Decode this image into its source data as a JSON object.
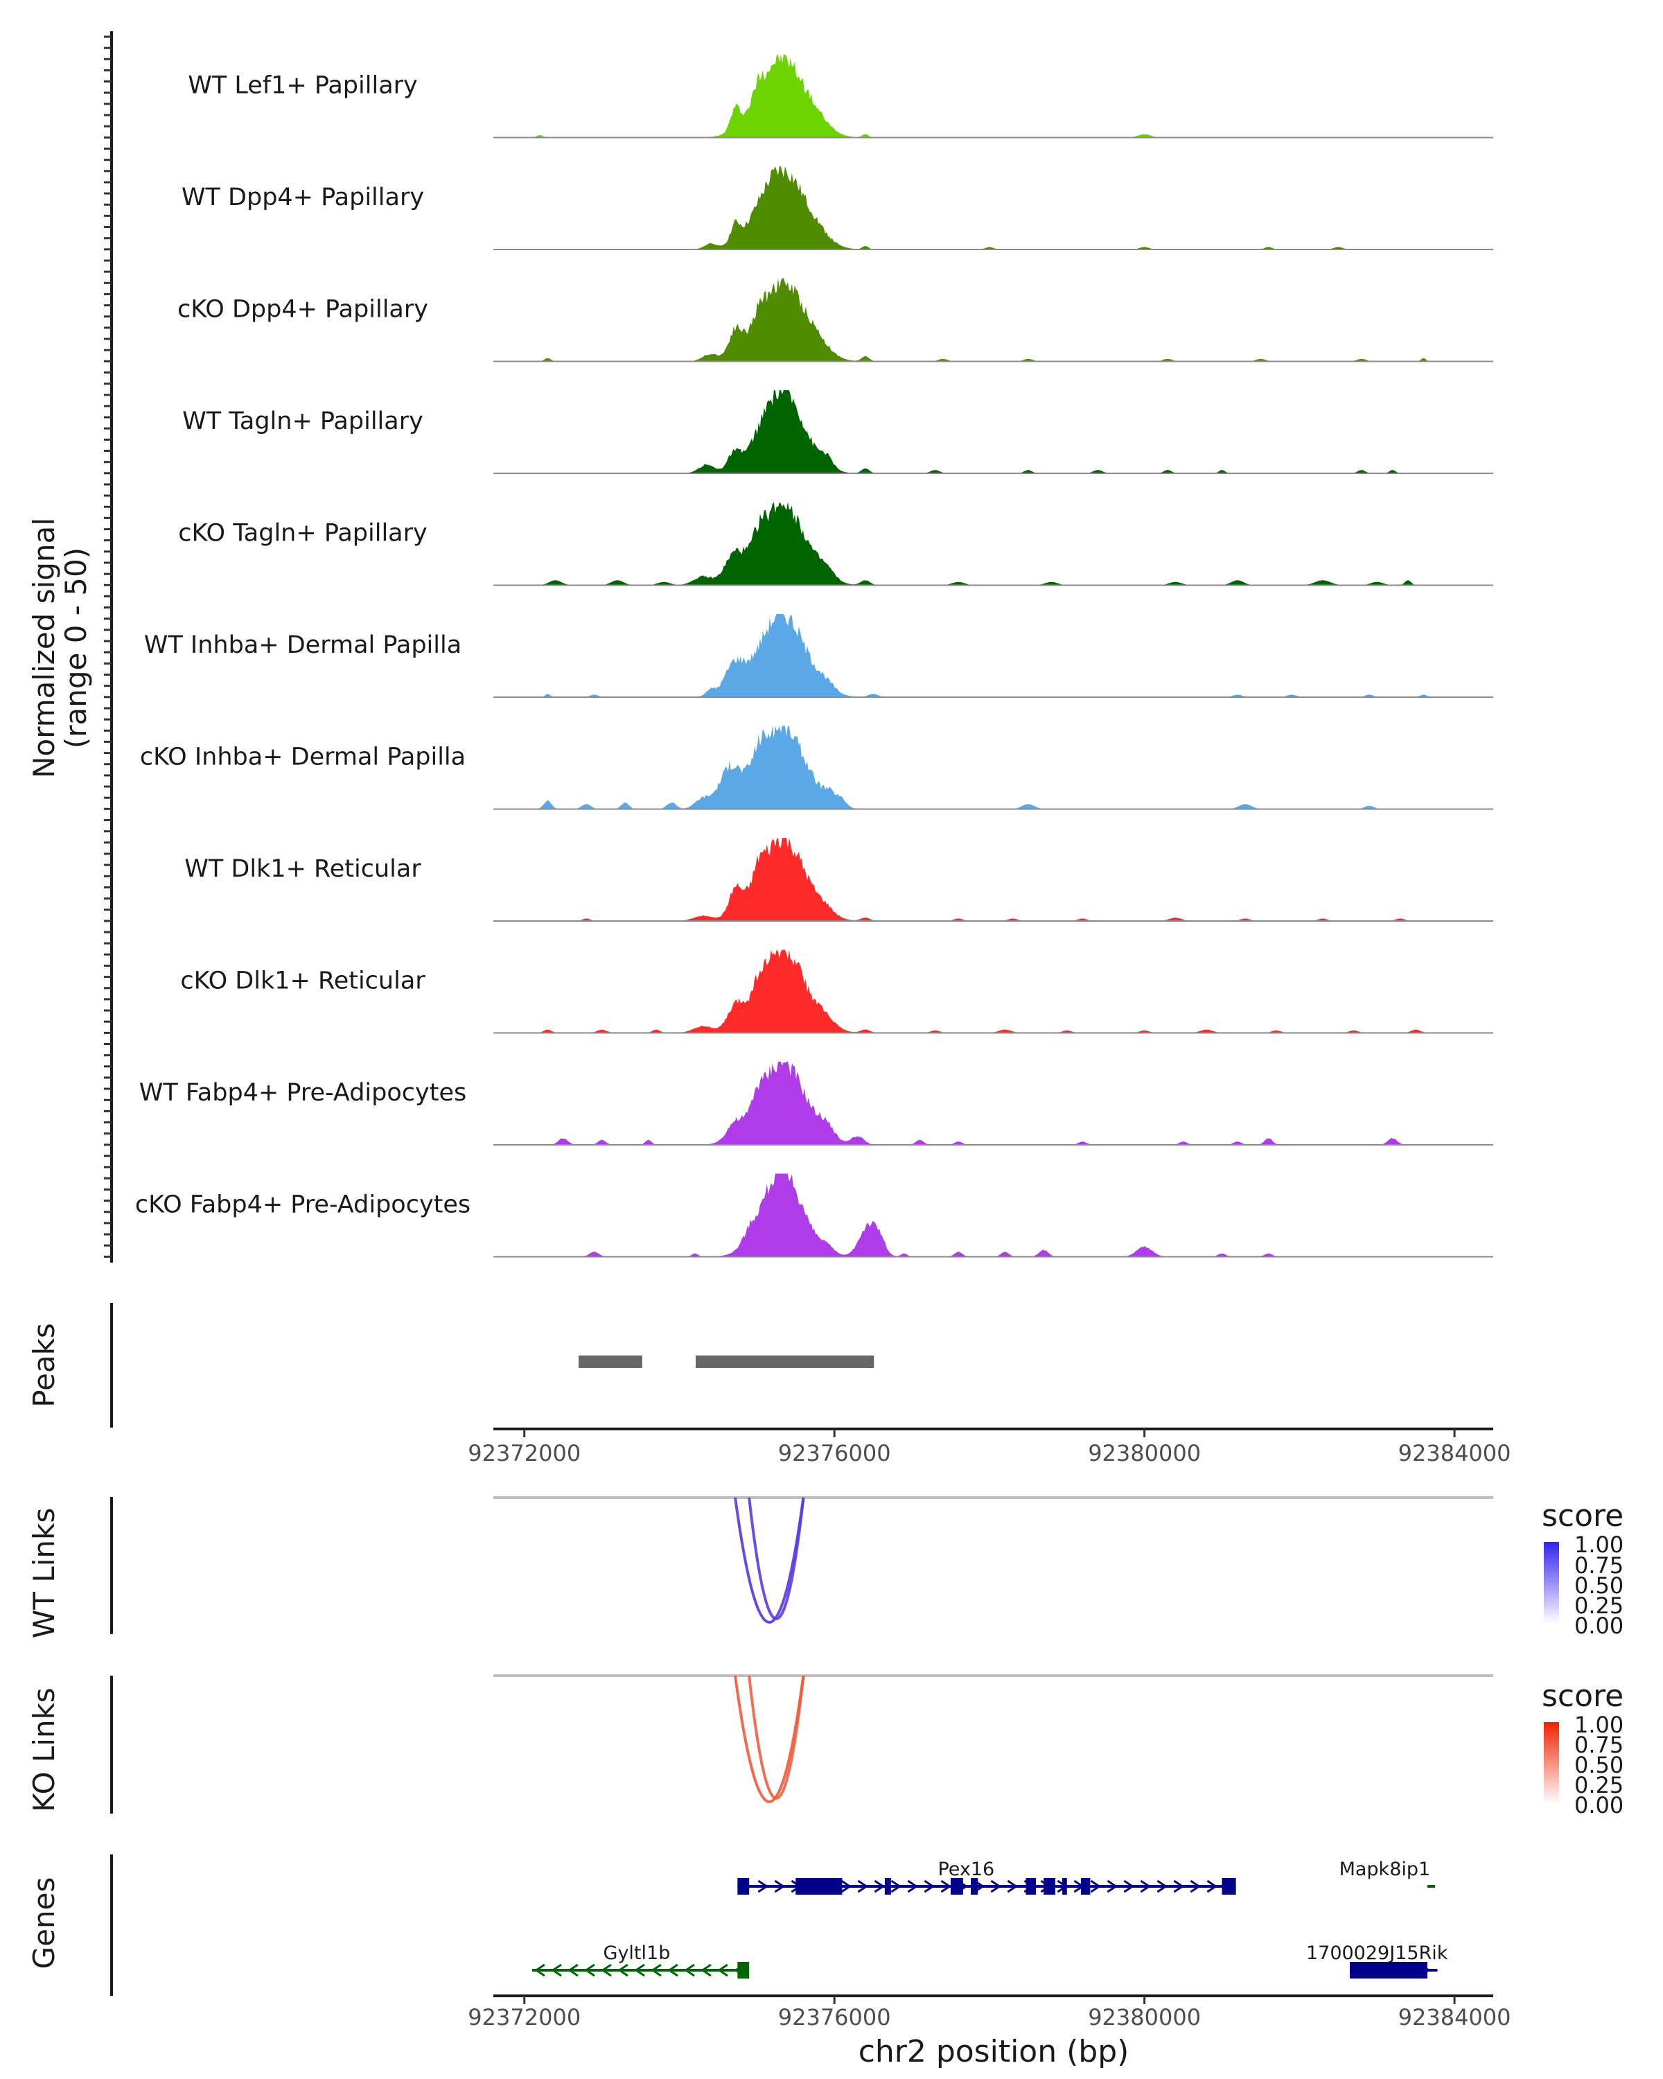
{
  "chart_data": {
    "type": "area",
    "title": "",
    "xlabel": "chr2 position (bp)",
    "xlim": [
      92371600,
      92384500
    ],
    "x_ticks": [
      92372000,
      92376000,
      92380000,
      92384000
    ],
    "x_tick_labels": [
      "92372000",
      "92376000",
      "92380000",
      "92384000"
    ],
    "coverage": {
      "ylabel_line1": "Normalized signal",
      "ylabel_line2": "(range 0 - 50)",
      "ylim": [
        0,
        50
      ],
      "tracks": [
        {
          "label": "WT Lef1+ Papillary",
          "color": "#6cd400",
          "peaks": [
            [
              92375320,
              300,
              48
            ],
            [
              92374720,
              60,
              12
            ],
            [
              92375020,
              60,
              7
            ],
            [
              92375800,
              150,
              3
            ],
            [
              92376400,
              40,
              2
            ],
            [
              92380000,
              80,
              2
            ],
            [
              92372200,
              40,
              1.5
            ]
          ]
        },
        {
          "label": "WT Dpp4+ Papillary",
          "color": "#4f8c00",
          "peaks": [
            [
              92375320,
              300,
              48
            ],
            [
              92374720,
              60,
              10
            ],
            [
              92374400,
              80,
              3
            ],
            [
              92375800,
              150,
              3
            ],
            [
              92376400,
              40,
              2
            ],
            [
              92378000,
              50,
              1.5
            ],
            [
              92380000,
              60,
              1.5
            ],
            [
              92381600,
              50,
              1.5
            ],
            [
              92382500,
              60,
              1.5
            ]
          ]
        },
        {
          "label": "cKO Dpp4+ Papillary",
          "color": "#4f8c00",
          "peaks": [
            [
              92375320,
              300,
              48
            ],
            [
              92374720,
              80,
              14
            ],
            [
              92374400,
              100,
              4
            ],
            [
              92375020,
              60,
              5
            ],
            [
              92375800,
              150,
              4
            ],
            [
              92376400,
              50,
              3
            ],
            [
              92372300,
              40,
              2
            ],
            [
              92377400,
              60,
              1.5
            ],
            [
              92378500,
              60,
              1.5
            ],
            [
              92380300,
              60,
              1.5
            ],
            [
              92381500,
              60,
              1.5
            ],
            [
              92382800,
              60,
              1.5
            ],
            [
              92383600,
              30,
              2
            ]
          ]
        },
        {
          "label": "WT Tagln+ Papillary",
          "color": "#006400",
          "peaks": [
            [
              92375320,
              280,
              50
            ],
            [
              92374700,
              80,
              9
            ],
            [
              92374350,
              100,
              5
            ],
            [
              92375900,
              80,
              6
            ],
            [
              92376400,
              50,
              3
            ],
            [
              92377300,
              60,
              2
            ],
            [
              92378500,
              50,
              2
            ],
            [
              92379400,
              60,
              2
            ],
            [
              92380300,
              50,
              2
            ],
            [
              92381000,
              40,
              2
            ],
            [
              92382800,
              50,
              2
            ],
            [
              92383200,
              40,
              2
            ]
          ]
        },
        {
          "label": "cKO Tagln+ Papillary",
          "color": "#006400",
          "peaks": [
            [
              92375320,
              300,
              50
            ],
            [
              92374700,
              120,
              14
            ],
            [
              92374300,
              120,
              5
            ],
            [
              92375020,
              60,
              7
            ],
            [
              92375900,
              100,
              5
            ],
            [
              92376400,
              60,
              3
            ],
            [
              92372400,
              80,
              3
            ],
            [
              92373200,
              80,
              3
            ],
            [
              92373800,
              80,
              2
            ],
            [
              92377600,
              80,
              2
            ],
            [
              92378800,
              80,
              2
            ],
            [
              92380400,
              80,
              2
            ],
            [
              92381200,
              80,
              3
            ],
            [
              92382300,
              100,
              3
            ],
            [
              92383000,
              80,
              2
            ],
            [
              92383400,
              40,
              3
            ]
          ]
        },
        {
          "label": "WT Inhba+ Dermal Papilla",
          "color": "#5aa9e6",
          "peaks": [
            [
              92375320,
              300,
              50
            ],
            [
              92374700,
              120,
              16
            ],
            [
              92374400,
              60,
              4
            ],
            [
              92375900,
              100,
              4
            ],
            [
              92376500,
              60,
              2
            ],
            [
              92372300,
              30,
              2
            ],
            [
              92372900,
              50,
              1.5
            ],
            [
              92381200,
              60,
              1.5
            ],
            [
              92381900,
              60,
              1.5
            ],
            [
              92382900,
              50,
              1.5
            ],
            [
              92383600,
              40,
              1.5
            ]
          ]
        },
        {
          "label": "cKO Inhba+ Dermal Papilla",
          "color": "#5aa9e6",
          "peaks": [
            [
              92375320,
              300,
              50
            ],
            [
              92374650,
              140,
              22
            ],
            [
              92374300,
              100,
              6
            ],
            [
              92375020,
              80,
              10
            ],
            [
              92375950,
              80,
              6
            ],
            [
              92376100,
              60,
              4
            ],
            [
              92372300,
              50,
              5
            ],
            [
              92372800,
              60,
              3
            ],
            [
              92373300,
              50,
              4
            ],
            [
              92373900,
              60,
              4
            ],
            [
              92378500,
              80,
              3
            ],
            [
              92381300,
              80,
              3
            ],
            [
              92382900,
              60,
              2
            ]
          ]
        },
        {
          "label": "WT Dlk1+ Reticular",
          "color": "#ff2b2b",
          "peaks": [
            [
              92375320,
              300,
              50
            ],
            [
              92374720,
              80,
              14
            ],
            [
              92374300,
              120,
              3
            ],
            [
              92375020,
              60,
              8
            ],
            [
              92375900,
              100,
              3
            ],
            [
              92376400,
              60,
              2
            ],
            [
              92372800,
              50,
              1.5
            ],
            [
              92377600,
              60,
              1.5
            ],
            [
              92378300,
              60,
              1.5
            ],
            [
              92379200,
              60,
              1.5
            ],
            [
              92380400,
              80,
              2
            ],
            [
              92381300,
              60,
              1.5
            ],
            [
              92382300,
              60,
              1.5
            ],
            [
              92383300,
              60,
              1.5
            ]
          ]
        },
        {
          "label": "cKO Dlk1+ Reticular",
          "color": "#ff2b2b",
          "peaks": [
            [
              92375320,
              300,
              50
            ],
            [
              92374720,
              100,
              11
            ],
            [
              92374300,
              120,
              4
            ],
            [
              92375020,
              60,
              6
            ],
            [
              92375900,
              120,
              4
            ],
            [
              92376400,
              60,
              2
            ],
            [
              92372300,
              50,
              2
            ],
            [
              92373000,
              60,
              2
            ],
            [
              92373700,
              50,
              2
            ],
            [
              92377300,
              60,
              1.5
            ],
            [
              92378200,
              80,
              2
            ],
            [
              92379000,
              60,
              1.5
            ],
            [
              92380000,
              60,
              1.5
            ],
            [
              92380800,
              80,
              2
            ],
            [
              92381700,
              60,
              1.5
            ],
            [
              92382700,
              60,
              1.5
            ],
            [
              92383500,
              60,
              2
            ]
          ]
        },
        {
          "label": "WT Fabp4+ Pre-Adipocytes",
          "color": "#b03be8",
          "peaks": [
            [
              92375320,
              300,
              50
            ],
            [
              92374700,
              100,
              8
            ],
            [
              92375000,
              60,
              7
            ],
            [
              92375900,
              100,
              7
            ],
            [
              92376300,
              80,
              5
            ],
            [
              92372500,
              60,
              4
            ],
            [
              92373000,
              50,
              3
            ],
            [
              92373600,
              40,
              3
            ],
            [
              92377100,
              50,
              3
            ],
            [
              92377600,
              50,
              2
            ],
            [
              92379200,
              50,
              2
            ],
            [
              92380500,
              50,
              2
            ],
            [
              92381200,
              50,
              2
            ],
            [
              92381600,
              50,
              4
            ],
            [
              92383200,
              60,
              4
            ]
          ]
        },
        {
          "label": "cKO Fabp4+ Pre-Adipocytes",
          "color": "#b03be8",
          "peaks": [
            [
              92375320,
              260,
              52
            ],
            [
              92376450,
              120,
              20
            ],
            [
              92374900,
              80,
              5
            ],
            [
              92375900,
              100,
              4
            ],
            [
              92376600,
              60,
              5
            ],
            [
              92372900,
              60,
              3
            ],
            [
              92374200,
              40,
              2
            ],
            [
              92376900,
              40,
              2
            ],
            [
              92377600,
              50,
              3
            ],
            [
              92378200,
              50,
              3
            ],
            [
              92378700,
              60,
              4
            ],
            [
              92380000,
              100,
              6
            ],
            [
              92381000,
              50,
              2
            ],
            [
              92381600,
              50,
              2
            ]
          ]
        }
      ]
    },
    "peaks_track": {
      "label": "Peaks",
      "color": "#666666",
      "intervals": [
        [
          92372700,
          92373520
        ],
        [
          92374210,
          92376510
        ]
      ]
    },
    "links": [
      {
        "label": "WT Links",
        "legend_title": "score",
        "legend_ticks": [
          "1.00",
          "0.75",
          "0.50",
          "0.25",
          "0.00"
        ],
        "color_high": "#3322ee",
        "arcs": [
          [
            92374720,
            92375600,
            0.85
          ],
          [
            92374900,
            92375600,
            0.8
          ]
        ]
      },
      {
        "label": "KO Links",
        "legend_title": "score",
        "legend_ticks": [
          "1.00",
          "0.75",
          "0.50",
          "0.25",
          "0.00"
        ],
        "color_high": "#ee2200",
        "arcs": [
          [
            92374720,
            92375600,
            0.8
          ],
          [
            92374900,
            92375600,
            0.75
          ]
        ]
      }
    ],
    "genes": {
      "label": "Genes",
      "items": [
        {
          "name": "Pex16",
          "strand": "+",
          "color": "#00008b",
          "row": 0,
          "start": 92374750,
          "end": 92381180,
          "exons": [
            [
              92374750,
              92374900
            ],
            [
              92375500,
              92375900
            ],
            [
              92375900,
              92376100
            ],
            [
              92376650,
              92376730
            ],
            [
              92377500,
              92377660
            ],
            [
              92377760,
              92377850
            ],
            [
              92378470,
              92378600
            ],
            [
              92378700,
              92378850
            ],
            [
              92378940,
              92379000
            ],
            [
              92379180,
              92379300
            ],
            [
              92381000,
              92381180
            ]
          ]
        },
        {
          "name": "Mapk8ip1",
          "strand": "-",
          "color": "#006400",
          "row": 0,
          "start": 92383650,
          "end": 92383750,
          "exons": []
        },
        {
          "name": "Gyltl1b",
          "strand": "-",
          "color": "#006400",
          "row": 1,
          "start": 92372100,
          "end": 92374900,
          "exons": [
            [
              92374750,
              92374900
            ]
          ]
        },
        {
          "name": "1700029J15Rik",
          "strand": "+",
          "color": "#00008b",
          "row": 1,
          "start": 92382650,
          "end": 92383780,
          "exons": [
            [
              92382650,
              92383650
            ]
          ]
        }
      ]
    }
  }
}
